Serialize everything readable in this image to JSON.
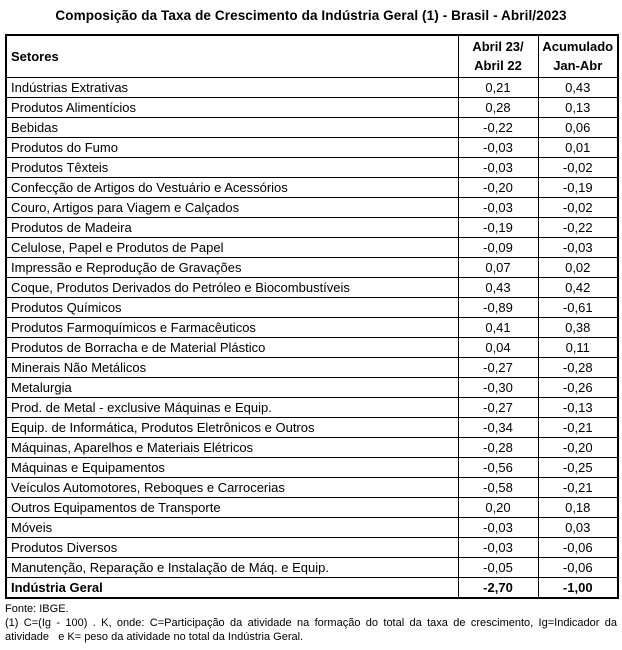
{
  "title": "Composição da Taxa de Crescimento da Indústria Geral (1) - Brasil - Abril/2023",
  "table": {
    "header": {
      "sectors": "Setores",
      "col1": [
        "Abril 23/",
        "Abril 22"
      ],
      "col2": [
        "Acumulado",
        "Jan-Abr"
      ]
    },
    "rows": [
      {
        "sector": "Indústrias Extrativas",
        "v1": "0,21",
        "v2": "0,43"
      },
      {
        "sector": "Produtos Alimentícios",
        "v1": "0,28",
        "v2": "0,13"
      },
      {
        "sector": "Bebidas",
        "v1": "-0,22",
        "v2": "0,06"
      },
      {
        "sector": "Produtos do Fumo",
        "v1": "-0,03",
        "v2": "0,01"
      },
      {
        "sector": "Produtos Têxteis",
        "v1": "-0,03",
        "v2": "-0,02"
      },
      {
        "sector": "Confecção de Artigos do Vestuário e Acessórios",
        "v1": "-0,20",
        "v2": "-0,19"
      },
      {
        "sector": "Couro, Artigos para Viagem e Calçados",
        "v1": "-0,03",
        "v2": "-0,02"
      },
      {
        "sector": "Produtos de Madeira",
        "v1": "-0,19",
        "v2": "-0,22"
      },
      {
        "sector": "Celulose, Papel e Produtos de Papel",
        "v1": "-0,09",
        "v2": "-0,03"
      },
      {
        "sector": "Impressão e Reprodução de Gravações",
        "v1": "0,07",
        "v2": "0,02"
      },
      {
        "sector": "Coque, Produtos Derivados do Petróleo e Biocombustíveis",
        "v1": "0,43",
        "v2": "0,42"
      },
      {
        "sector": "Produtos Químicos",
        "v1": "-0,89",
        "v2": "-0,61"
      },
      {
        "sector": "Produtos Farmoquímicos e Farmacêuticos",
        "v1": "0,41",
        "v2": "0,38"
      },
      {
        "sector": "Produtos de Borracha e de Material Plástico",
        "v1": "0,04",
        "v2": "0,11"
      },
      {
        "sector": "Minerais Não Metálicos",
        "v1": "-0,27",
        "v2": "-0,28"
      },
      {
        "sector": "Metalurgia",
        "v1": "-0,30",
        "v2": "-0,26"
      },
      {
        "sector": "Prod. de Metal - exclusive Máquinas e Equip.",
        "v1": "-0,27",
        "v2": "-0,13"
      },
      {
        "sector": "Equip. de Informática, Produtos Eletrônicos e Outros",
        "v1": "-0,34",
        "v2": "-0,21"
      },
      {
        "sector": "Máquinas, Aparelhos e Materiais Elétricos",
        "v1": "-0,28",
        "v2": "-0,20"
      },
      {
        "sector": "Máquinas e Equipamentos",
        "v1": "-0,56",
        "v2": "-0,25"
      },
      {
        "sector": "Veículos Automotores, Reboques e Carrocerias",
        "v1": "-0,58",
        "v2": "-0,21"
      },
      {
        "sector": "Outros Equipamentos de Transporte",
        "v1": "0,20",
        "v2": "0,18"
      },
      {
        "sector": "Móveis",
        "v1": "-0,03",
        "v2": "0,03"
      },
      {
        "sector": "Produtos Diversos",
        "v1": "-0,03",
        "v2": "-0,06"
      },
      {
        "sector": "Manutenção, Reparação e Instalação de Máq. e Equip.",
        "v1": "-0,05",
        "v2": "-0,06"
      }
    ],
    "total": {
      "sector": "Indústria Geral",
      "v1": "-2,70",
      "v2": "-1,00"
    }
  },
  "footer": {
    "source": "Fonte: IBGE.",
    "note": "(1) C=(Ig - 100) . K, onde: C=Participação da atividade na formação do total da taxa de crescimento, Ig=Indicador da atividade   e K= peso da atividade no total da Indústria Geral."
  },
  "colors": {
    "text": "#000000",
    "border": "#000000",
    "background": "#ffffff"
  },
  "chart_data": {
    "type": "table",
    "title": "Composição da Taxa de Crescimento da Indústria Geral (1) - Brasil - Abril/2023",
    "columns": [
      "Setores",
      "Abril 23/ Abril 22",
      "Acumulado Jan-Abr"
    ],
    "rows": [
      [
        "Indústrias Extrativas",
        0.21,
        0.43
      ],
      [
        "Produtos Alimentícios",
        0.28,
        0.13
      ],
      [
        "Bebidas",
        -0.22,
        0.06
      ],
      [
        "Produtos do Fumo",
        -0.03,
        0.01
      ],
      [
        "Produtos Têxteis",
        -0.03,
        -0.02
      ],
      [
        "Confecção de Artigos do Vestuário e Acessórios",
        -0.2,
        -0.19
      ],
      [
        "Couro, Artigos para Viagem e Calçados",
        -0.03,
        -0.02
      ],
      [
        "Produtos de Madeira",
        -0.19,
        -0.22
      ],
      [
        "Celulose, Papel e Produtos de Papel",
        -0.09,
        -0.03
      ],
      [
        "Impressão e Reprodução de Gravações",
        0.07,
        0.02
      ],
      [
        "Coque, Produtos Derivados do Petróleo e Biocombustíveis",
        0.43,
        0.42
      ],
      [
        "Produtos Químicos",
        -0.89,
        -0.61
      ],
      [
        "Produtos Farmoquímicos e Farmacêuticos",
        0.41,
        0.38
      ],
      [
        "Produtos de Borracha e de Material Plástico",
        0.04,
        0.11
      ],
      [
        "Minerais Não Metálicos",
        -0.27,
        -0.28
      ],
      [
        "Metalurgia",
        -0.3,
        -0.26
      ],
      [
        "Prod. de Metal - exclusive Máquinas e Equip.",
        -0.27,
        -0.13
      ],
      [
        "Equip. de Informática, Produtos Eletrônicos e Outros",
        -0.34,
        -0.21
      ],
      [
        "Máquinas, Aparelhos e Materiais Elétricos",
        -0.28,
        -0.2
      ],
      [
        "Máquinas e Equipamentos",
        -0.56,
        -0.25
      ],
      [
        "Veículos Automotores, Reboques e Carrocerias",
        -0.58,
        -0.21
      ],
      [
        "Outros Equipamentos de Transporte",
        0.2,
        0.18
      ],
      [
        "Móveis",
        -0.03,
        0.03
      ],
      [
        "Produtos Diversos",
        -0.03,
        -0.06
      ],
      [
        "Manutenção, Reparação e Instalação de Máq. e Equip.",
        -0.05,
        -0.06
      ],
      [
        "Indústria Geral",
        -2.7,
        -1.0
      ]
    ],
    "source": "Fonte: IBGE.",
    "footnote": "(1) C=(Ig - 100) . K, onde: C=Participação da atividade na formação do total da taxa de crescimento, Ig=Indicador da atividade e K= peso da atividade no total da Indústria Geral.",
    "decimal_separator": ",",
    "value_unit": "percentage points (contribution to growth rate)"
  }
}
